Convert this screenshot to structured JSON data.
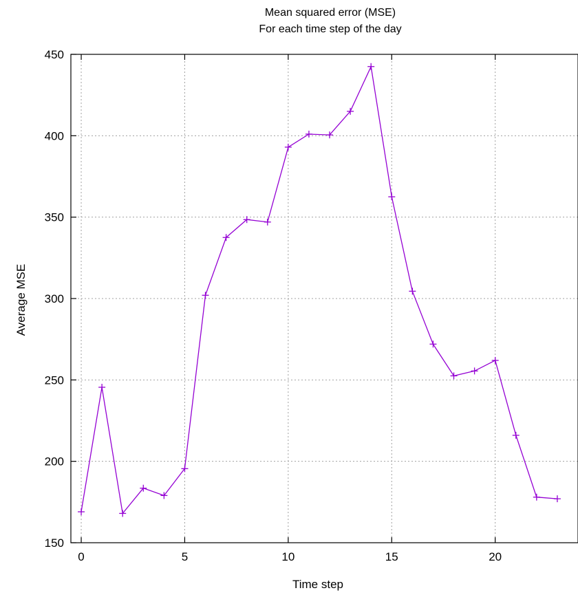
{
  "chart_data": {
    "type": "line",
    "title": "Mean squared error (MSE)",
    "subtitle": "For each time step of the day",
    "xlabel": "Time step",
    "ylabel": "Average MSE",
    "xlim": [
      -0.5,
      24
    ],
    "ylim": [
      150,
      450
    ],
    "xticks": [
      0,
      5,
      10,
      15,
      20
    ],
    "yticks": [
      150,
      200,
      250,
      300,
      350,
      400,
      450
    ],
    "grid": true,
    "marker": "plus",
    "color": "#9400d3",
    "x": [
      0,
      1,
      2,
      3,
      4,
      5,
      6,
      7,
      8,
      9,
      10,
      11,
      12,
      13,
      14,
      15,
      16,
      17,
      18,
      19,
      20,
      21,
      22,
      23
    ],
    "series": [
      {
        "values": [
          169,
          245.5,
          168,
          183.5,
          179,
          195.5,
          302,
          337.5,
          348.5,
          347,
          393,
          401,
          400.5,
          415,
          442.5,
          362.5,
          304.5,
          272,
          252.5,
          255.5,
          262,
          216,
          178,
          177
        ]
      }
    ]
  }
}
